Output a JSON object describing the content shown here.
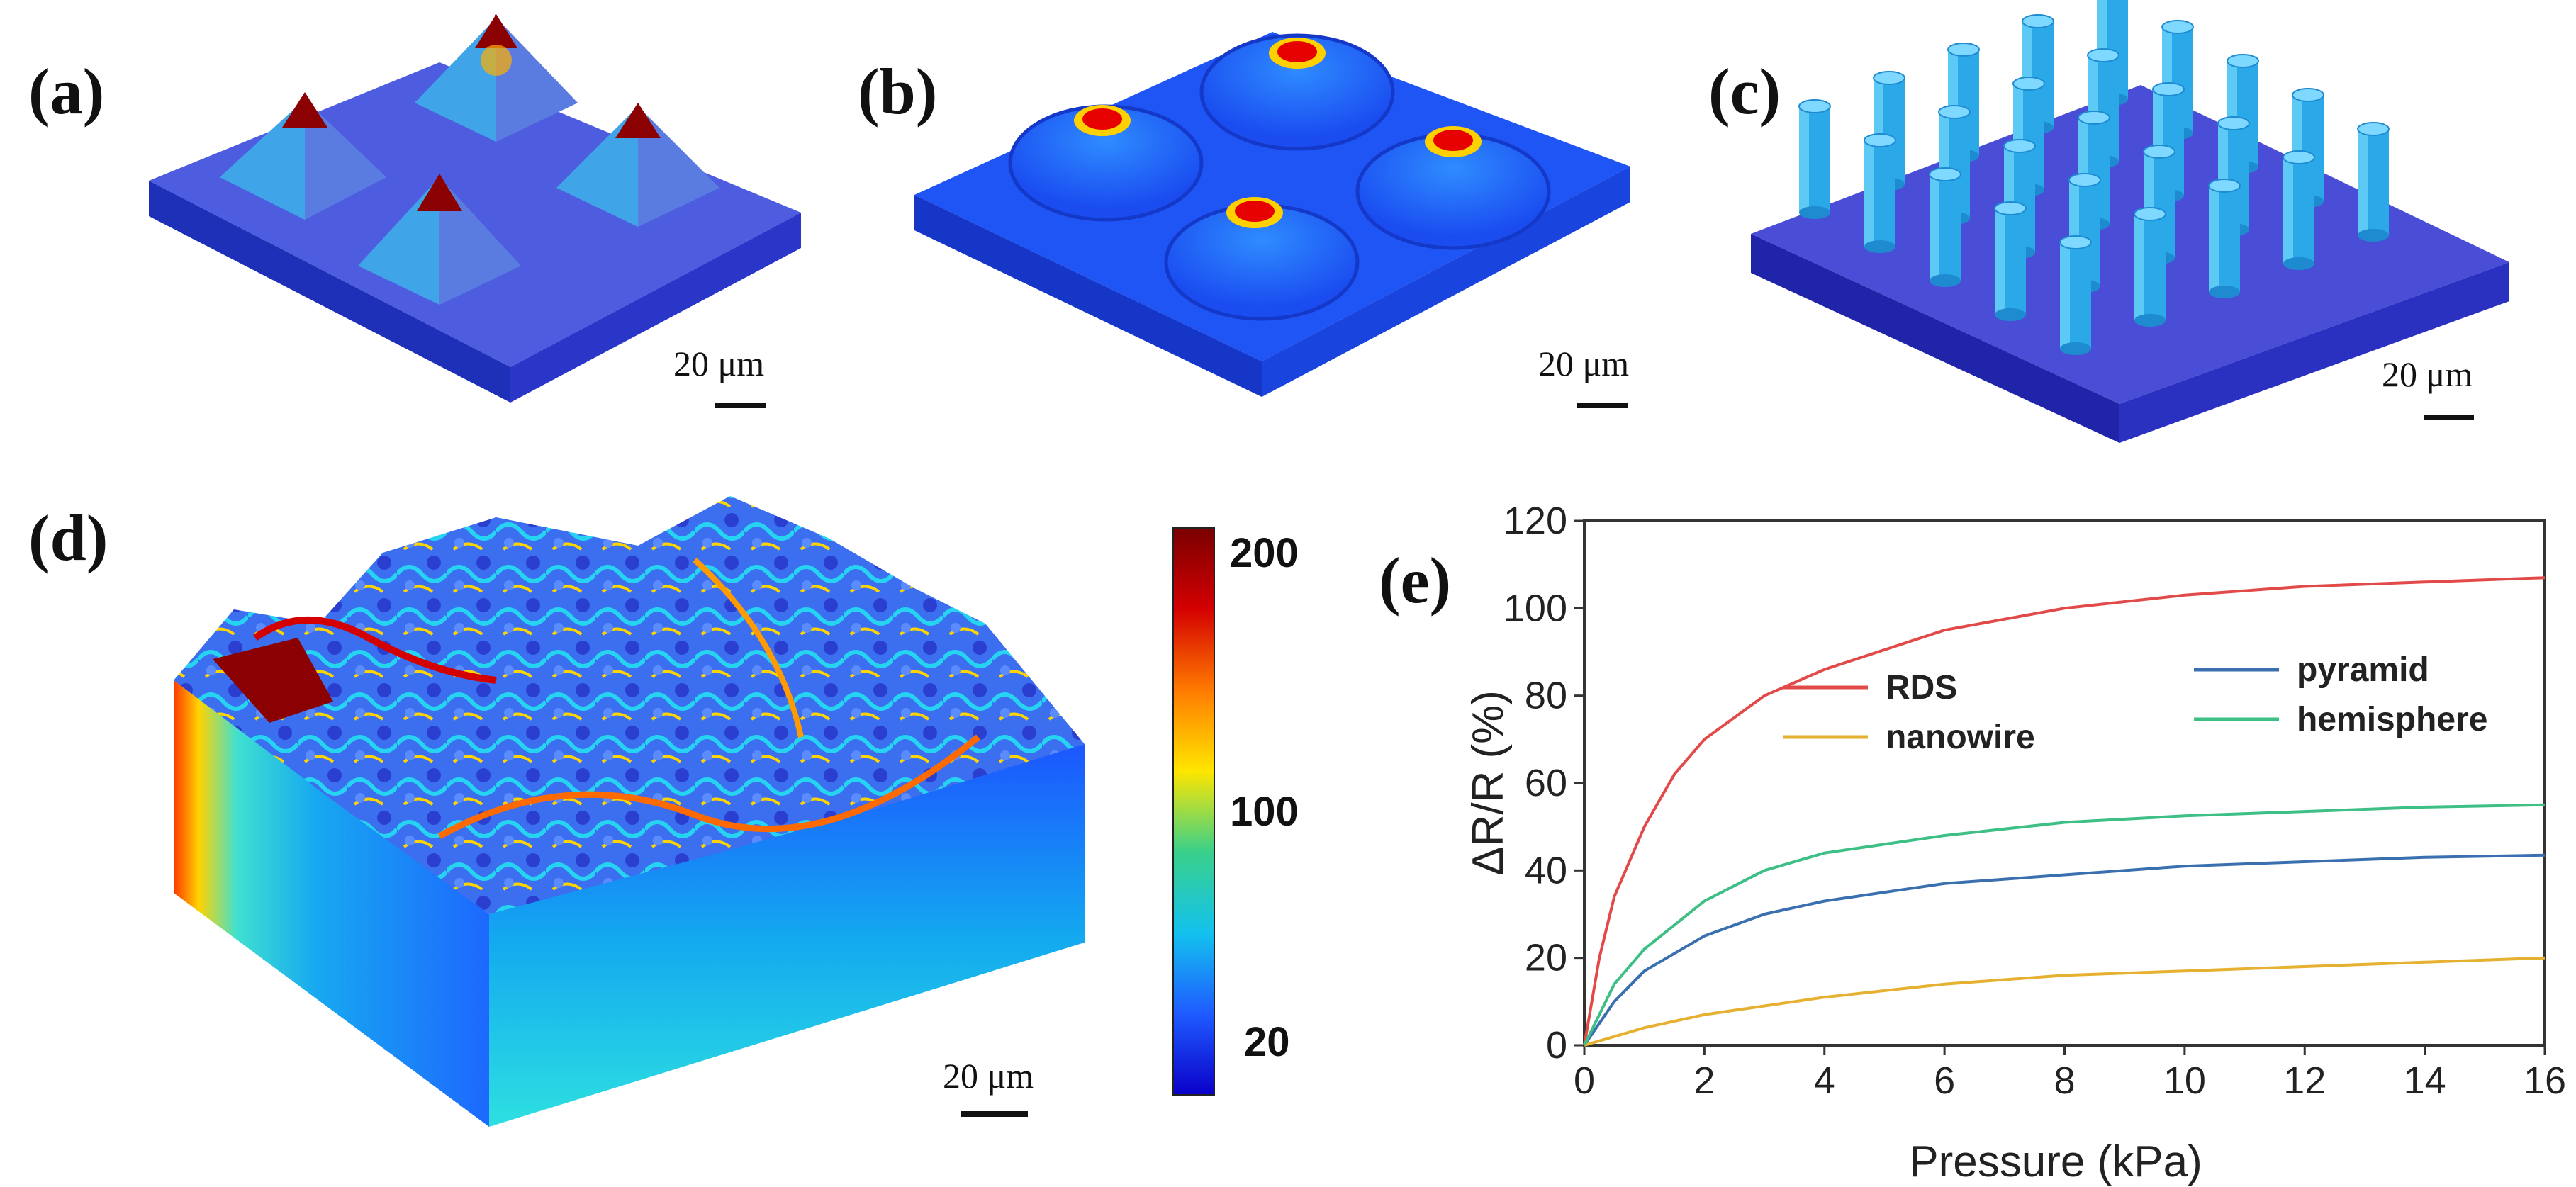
{
  "panels": {
    "a": {
      "label": "(a)",
      "scale": "20 μm"
    },
    "b": {
      "label": "(b)",
      "scale": "20 μm"
    },
    "c": {
      "label": "(c)",
      "scale": "20 μm"
    },
    "d": {
      "label": "(d)",
      "scale": "20 μm"
    },
    "e": {
      "label": "(e)"
    }
  },
  "colorbar": {
    "ticks": [
      "200",
      "100",
      "20"
    ],
    "colors": [
      "#7a0000",
      "#d40000",
      "#ff7a00",
      "#ffe600",
      "#39d08a",
      "#13c2ee",
      "#1f5bff",
      "#0a00c8"
    ]
  },
  "chart_data": {
    "type": "line",
    "xlabel": "Pressure (kPa)",
    "ylabel": "ΔR/R (%)",
    "xlim": [
      0,
      16
    ],
    "ylim": [
      0,
      120
    ],
    "xticks": [
      "0",
      "2",
      "4",
      "6",
      "8",
      "10",
      "12",
      "14",
      "16"
    ],
    "yticks": [
      "0",
      "20",
      "40",
      "60",
      "80",
      "100",
      "120"
    ],
    "legend": "top, two columns",
    "series": [
      {
        "name": "RDS",
        "color": "#e24a4a",
        "x": [
          0,
          0.25,
          0.5,
          1,
          1.5,
          2,
          3,
          4,
          6,
          8,
          10,
          12,
          14,
          16
        ],
        "y": [
          0,
          20,
          34,
          50,
          62,
          70,
          80,
          86,
          95,
          100,
          103,
          105,
          106,
          107
        ]
      },
      {
        "name": "pyramid",
        "color": "#3a6fb0",
        "x": [
          0,
          0.5,
          1,
          2,
          3,
          4,
          6,
          8,
          10,
          12,
          14,
          16
        ],
        "y": [
          0,
          10,
          17,
          25,
          30,
          33,
          37,
          39,
          41,
          42,
          43,
          43.5
        ]
      },
      {
        "name": "nanowire",
        "color": "#e6b030",
        "x": [
          0,
          0.5,
          1,
          2,
          3,
          4,
          6,
          8,
          10,
          12,
          14,
          16
        ],
        "y": [
          0,
          2,
          4,
          7,
          9,
          11,
          14,
          16,
          17,
          18,
          19,
          20
        ]
      },
      {
        "name": "hemisphere",
        "color": "#3dbf85",
        "x": [
          0,
          0.5,
          1,
          2,
          3,
          4,
          6,
          8,
          10,
          12,
          14,
          16
        ],
        "y": [
          0,
          14,
          22,
          33,
          40,
          44,
          48,
          51,
          52.5,
          53.5,
          54.5,
          55
        ]
      }
    ]
  }
}
